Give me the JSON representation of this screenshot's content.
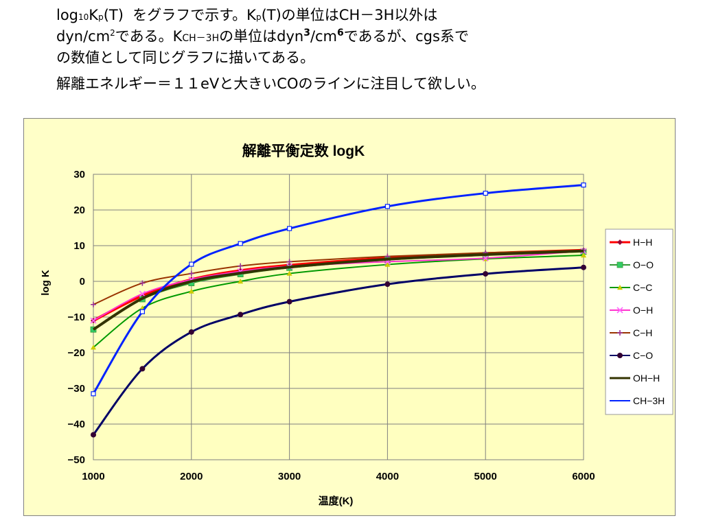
{
  "intro": {
    "line1": {
      "log": "log",
      "log_sub": "10",
      "k": "K",
      "k_sub": "p",
      "t1": "(T)",
      "t2": "をグラフで示す。K",
      "t2_sub": "p",
      "t3": "(T)の単位はCH－3H以外は"
    },
    "line2": {
      "t1": "dyn/cm",
      "t1_sup": "2",
      "t2": "である。K",
      "t2_sub": "CH－3H",
      "t3": "の単位はdyn",
      "t3_sup": "3",
      "t4": "/cm",
      "t4_sup": "6",
      "t5": "であるが、cgs系で"
    },
    "line3": "の数値として同じグラフに描いてある。",
    "line4": "解離エネルギー＝１１eVと大きいCOのラインに注目して欲しい。"
  },
  "colors": {
    "panel_bg": "#FFFFC8",
    "plot_bg": "#FFFFC0",
    "grid": "#7F7F7F"
  },
  "chart_data": {
    "type": "line",
    "title": "解離平衡定数 logK",
    "xlabel": "温度(K)",
    "ylabel": "log K",
    "xlim": [
      1000,
      6000
    ],
    "ylim": [
      -50,
      30
    ],
    "xticks": [
      1000,
      2000,
      3000,
      4000,
      5000,
      6000
    ],
    "yticks": [
      30,
      20,
      10,
      0,
      -10,
      -20,
      -30,
      -40,
      -50
    ],
    "xtick_labels": [
      "1000",
      "2000",
      "3000",
      "4000",
      "5000",
      "6000"
    ],
    "ytick_labels": [
      "30",
      "20",
      "10",
      "0",
      "−10",
      "−20",
      "−30",
      "−40",
      "−50"
    ],
    "grid": true,
    "legend_position": "right",
    "series": [
      {
        "name": "H−H",
        "color": "#FF0000",
        "marker": "diamond",
        "width": 4,
        "marker_color": "#990033",
        "x": [
          1000,
          1500,
          2000,
          2500,
          3000,
          4000,
          5000,
          6000
        ],
        "y": [
          -11,
          -4,
          0.5,
          3,
          4.5,
          6.5,
          7.8,
          8.7
        ]
      },
      {
        "name": "O−O",
        "color": "#339933",
        "marker": "square",
        "width": 2,
        "marker_color": "#33CC66",
        "x": [
          1000,
          1500,
          2000,
          2500,
          3000,
          4000,
          5000,
          6000
        ],
        "y": [
          -13.5,
          -5,
          -0.5,
          2,
          3.8,
          6,
          7.4,
          8.3
        ]
      },
      {
        "name": "C−C",
        "color": "#009900",
        "marker": "triangle",
        "width": 2,
        "marker_color": "#CCCC00",
        "x": [
          1000,
          1500,
          2000,
          2500,
          3000,
          4000,
          5000,
          6000
        ],
        "y": [
          -18.5,
          -7.5,
          -2.8,
          0,
          2.2,
          4.7,
          6.3,
          7.3
        ]
      },
      {
        "name": "O−H",
        "color": "#FF33CC",
        "marker": "x",
        "width": 2,
        "marker_color": "#FF66FF",
        "x": [
          1000,
          1500,
          2000,
          2500,
          3000,
          4000,
          5000,
          6000
        ],
        "y": [
          -11,
          -3.5,
          0.5,
          2.8,
          4.2,
          5.5,
          6.5,
          8.5
        ]
      },
      {
        "name": "C−H",
        "color": "#993300",
        "marker": "plus",
        "width": 2,
        "marker_color": "#993399",
        "x": [
          1000,
          1500,
          2000,
          2500,
          3000,
          4000,
          5000,
          6000
        ],
        "y": [
          -6.5,
          -0.5,
          2.2,
          4.3,
          5.5,
          7,
          8,
          8.7
        ]
      },
      {
        "name": "C−O",
        "color": "#000066",
        "marker": "circle",
        "width": 3,
        "marker_color": "#330033",
        "x": [
          1000,
          1500,
          2000,
          2500,
          3000,
          4000,
          5000,
          6000
        ],
        "y": [
          -43,
          -24.5,
          -14.2,
          -9.3,
          -5.7,
          -0.8,
          2.1,
          3.9
        ]
      },
      {
        "name": "OH−H",
        "color": "#333300",
        "marker": "none",
        "width": 4,
        "marker_color": "#333300",
        "x": [
          1000,
          1500,
          2000,
          2500,
          3000,
          4000,
          5000,
          6000
        ],
        "y": [
          -13.5,
          -4.8,
          0,
          2.3,
          4,
          6.2,
          7.5,
          8.5
        ]
      },
      {
        "name": "CH−3H",
        "color": "#0022FF",
        "marker": "square-open",
        "width": 3,
        "marker_color": "#0022FF",
        "x": [
          1000,
          1500,
          2000,
          2500,
          3000,
          4000,
          5000,
          6000
        ],
        "y": [
          -31.5,
          -8.5,
          4.8,
          10.6,
          14.8,
          21,
          24.7,
          27
        ]
      }
    ]
  }
}
